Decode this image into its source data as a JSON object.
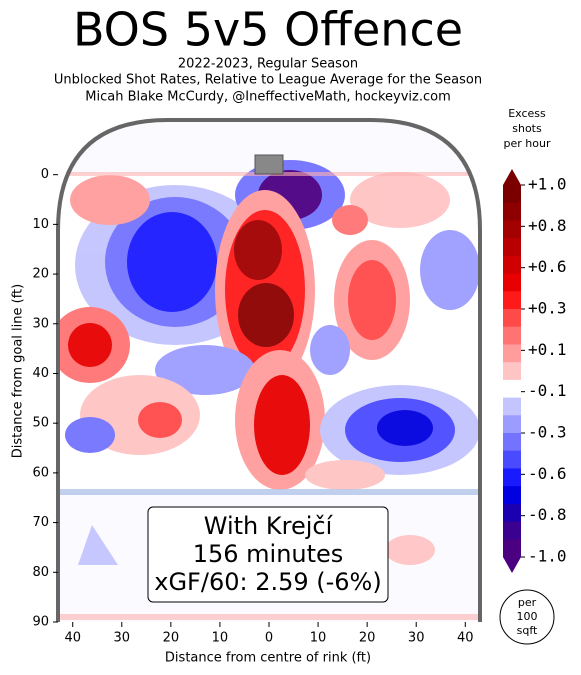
{
  "chart_data": {
    "type": "heatmap",
    "title": "BOS 5v5 Offence",
    "subtitle": [
      "2022-2023, Regular Season",
      "Unblocked Shot Rates, Relative to League Average for the Season",
      "Micah Blake McCurdy, @IneffectiveMath, hockeyviz.com"
    ],
    "xlabel": "Distance from centre of rink (ft)",
    "ylabel": "Distance from goal line (ft)",
    "xlim": [
      -43,
      43
    ],
    "xticks": [
      {
        "value": -40,
        "label": "40"
      },
      {
        "value": -30,
        "label": "30"
      },
      {
        "value": -20,
        "label": "20"
      },
      {
        "value": -10,
        "label": "10"
      },
      0,
      10,
      20,
      30,
      40
    ],
    "ylim": [
      -11,
      90
    ],
    "yticks": [
      0,
      10,
      20,
      30,
      40,
      50,
      60,
      70,
      80,
      90
    ],
    "annotation": [
      "With Krejčí",
      "156 minutes",
      "xGF/60: 2.59 (-6%)"
    ],
    "badge": [
      "per",
      "100",
      "sqft"
    ],
    "colorbar": {
      "title": [
        "Excess",
        "shots",
        "per hour"
      ],
      "ticks": [
        {
          "value": 1.0,
          "label": "+1.0"
        },
        {
          "value": 0.8,
          "label": "+0.8"
        },
        {
          "value": 0.6,
          "label": "+0.6"
        },
        {
          "value": 0.3,
          "label": "+0.3"
        },
        {
          "value": 0.1,
          "label": "+0.1"
        },
        {
          "value": -0.1,
          "label": "-0.1"
        },
        {
          "value": -0.3,
          "label": "-0.3"
        },
        {
          "value": -0.6,
          "label": "-0.6"
        },
        {
          "value": -0.8,
          "label": "-0.8"
        },
        {
          "value": -1.0,
          "label": "-1.0"
        }
      ],
      "colors": [
        "#7a0000",
        "#8e0000",
        "#a30000",
        "#b80000",
        "#d00000",
        "#e80000",
        "#ff1a1a",
        "#ff4a4a",
        "#ff7373",
        "#ff9c9c",
        "#ffc4c4",
        "#ffffff",
        "#c4c4ff",
        "#9c9cff",
        "#7373ff",
        "#4a4aff",
        "#1a1aff",
        "#0000e0",
        "#1a00b0",
        "#3a0090",
        "#4b0082"
      ]
    }
  }
}
